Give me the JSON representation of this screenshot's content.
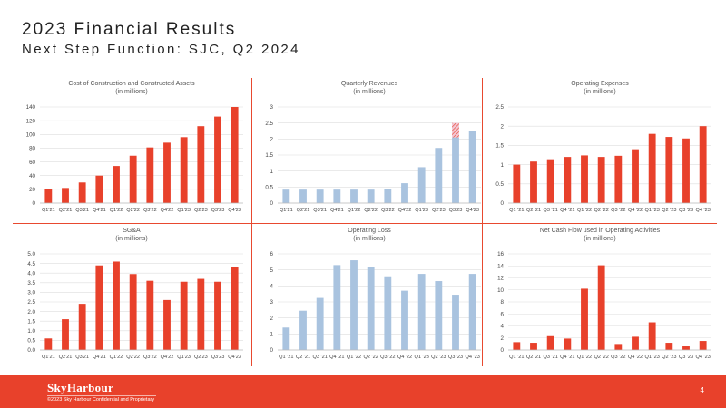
{
  "header": {
    "title": "2023 Financial Results",
    "subtitle": "Next Step Function: SJC, Q2 2024"
  },
  "footer": {
    "logo_text": "SkyHarbour",
    "confidential": "©2023 Sky Harbour Confidential and Proprietary",
    "page_number": "4"
  },
  "colors": {
    "red": "#e8412b",
    "blue": "#a9c3df",
    "grid": "#dddddd",
    "axis_text": "#444444"
  },
  "chart_data": [
    {
      "type": "bar",
      "title": "Cost of Construction and Constructed Assets",
      "subtitle": "(in millions)",
      "color": "red",
      "categories": [
        "Q1'21",
        "Q2'21",
        "Q3'21",
        "Q4'21",
        "Q1'22",
        "Q2'22",
        "Q3'22",
        "Q4'22",
        "Q1'23",
        "Q2'23",
        "Q3'23",
        "Q4'23"
      ],
      "values": [
        20,
        22,
        30,
        40,
        54,
        69,
        81,
        88,
        96,
        112,
        126,
        140
      ],
      "ylim": [
        0,
        140
      ],
      "yticks": [
        "0",
        "20",
        "40",
        "60",
        "80",
        "100",
        "120",
        "140"
      ],
      "ytick_values": [
        0,
        20,
        40,
        60,
        80,
        100,
        120,
        140
      ],
      "grid": true
    },
    {
      "type": "bar",
      "title": "Quarterly Revenues",
      "subtitle": "(in millions)",
      "color": "blue",
      "categories": [
        "Q1'21",
        "Q2'21",
        "Q3'21",
        "Q4'21",
        "Q1'22",
        "Q2'22",
        "Q3'22",
        "Q4'22",
        "Q1'23",
        "Q2'23",
        "Q3'23",
        "Q4'23"
      ],
      "values": [
        0.42,
        0.42,
        0.42,
        0.42,
        0.42,
        0.42,
        0.45,
        0.62,
        1.12,
        1.72,
        2.5,
        2.25
      ],
      "ylim": [
        0,
        3
      ],
      "yticks": [
        "0",
        "0.5",
        "1",
        "1.5",
        "2",
        "2.5",
        "3"
      ],
      "ytick_values": [
        0,
        0.5,
        1,
        1.5,
        2,
        2.5,
        3
      ],
      "highlight_index": 10,
      "highlight_from": 2.05,
      "grid": true
    },
    {
      "type": "bar",
      "title": "Operating Expenses",
      "subtitle": "(in millions)",
      "color": "red",
      "categories": [
        "Q1 '21",
        "Q2 '21",
        "Q3 '21",
        "Q4 '21",
        "Q1 '22",
        "Q2 '22",
        "Q3 '22",
        "Q4 '22",
        "Q1 '23",
        "Q2 '23",
        "Q3 '23",
        "Q4 '23"
      ],
      "values": [
        1.0,
        1.08,
        1.14,
        1.2,
        1.24,
        1.2,
        1.23,
        1.4,
        1.8,
        1.72,
        1.68,
        2.0
      ],
      "ylim": [
        0,
        2.5
      ],
      "yticks": [
        "0",
        "0.5",
        "1",
        "1.5",
        "2",
        "2.5"
      ],
      "ytick_values": [
        0,
        0.5,
        1,
        1.5,
        2,
        2.5
      ],
      "grid": true
    },
    {
      "type": "bar",
      "title": "SG&A",
      "subtitle": "(in millions)",
      "color": "red",
      "categories": [
        "Q1'21",
        "Q2'21",
        "Q3'21",
        "Q4'21",
        "Q1'22",
        "Q2'22",
        "Q3'22",
        "Q4'22",
        "Q1'23",
        "Q2'23",
        "Q3'23",
        "Q4'23"
      ],
      "values": [
        0.6,
        1.6,
        2.4,
        4.4,
        4.6,
        3.95,
        3.6,
        2.6,
        3.55,
        3.7,
        3.55,
        4.3
      ],
      "ylim": [
        0,
        5
      ],
      "yticks": [
        "0.0",
        "0.5",
        "1.0",
        "1.5",
        "2.0",
        "2.5",
        "3.0",
        "3.5",
        "4.0",
        "4.5",
        "5.0"
      ],
      "ytick_values": [
        0,
        0.5,
        1,
        1.5,
        2,
        2.5,
        3,
        3.5,
        4,
        4.5,
        5
      ],
      "grid": true
    },
    {
      "type": "bar",
      "title": "Operating Loss",
      "subtitle": "(in millions)",
      "color": "blue",
      "categories": [
        "Q1 '21",
        "Q2 '21",
        "Q3 '21",
        "Q4 '21",
        "Q1 '22",
        "Q2 '22",
        "Q3 '22",
        "Q4 '22",
        "Q1 '23",
        "Q2 '23",
        "Q3 '23",
        "Q4 '23"
      ],
      "values": [
        1.4,
        2.45,
        3.25,
        5.3,
        5.6,
        5.2,
        4.6,
        3.7,
        4.75,
        4.3,
        3.45,
        4.75
      ],
      "ylim": [
        0,
        6
      ],
      "yticks": [
        "0",
        "1",
        "2",
        "3",
        "4",
        "5",
        "6"
      ],
      "ytick_values": [
        0,
        1,
        2,
        3,
        4,
        5,
        6
      ],
      "grid": true
    },
    {
      "type": "bar",
      "title": "Net Cash Flow used in Operating Activities",
      "subtitle": "(in millions)",
      "color": "red",
      "categories": [
        "Q1 '21",
        "Q2 '21",
        "Q3 '21",
        "Q4 '21",
        "Q1 '22",
        "Q2 '22",
        "Q3 '22",
        "Q4 '22",
        "Q1 '23",
        "Q2 '23",
        "Q3 '23",
        "Q4 '23"
      ],
      "values": [
        1.3,
        1.2,
        2.3,
        1.9,
        10.2,
        14.1,
        1.0,
        2.2,
        4.6,
        1.2,
        0.6,
        1.5
      ],
      "ylim": [
        0,
        16
      ],
      "yticks": [
        "0",
        "2",
        "4",
        "6",
        "8",
        "10",
        "12",
        "14",
        "16"
      ],
      "ytick_values": [
        0,
        2,
        4,
        6,
        8,
        10,
        12,
        14,
        16
      ],
      "grid": true
    }
  ]
}
